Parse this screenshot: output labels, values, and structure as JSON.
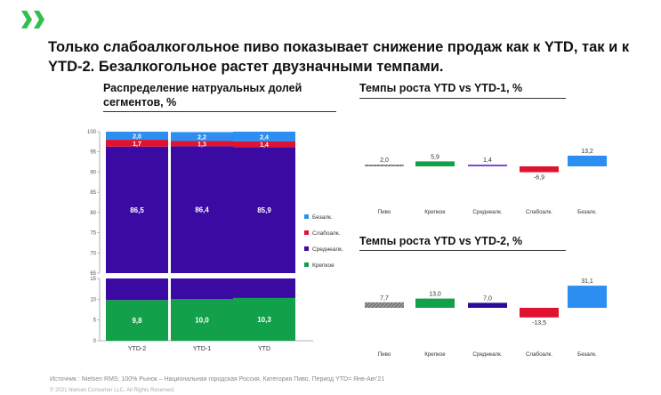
{
  "header": {
    "title": "Только слабоалкогольное пиво показывает снижение продаж как к YTD, так и к YTD-2. Безалкогольное растет двузначными темпами.",
    "logo_icon": "brand-logo-icon",
    "accent": "#2fbf4a"
  },
  "left_panel": {
    "subtitle": "Распределение натруальных долей сегментов, %"
  },
  "right_top": {
    "subtitle": "Темпы роста YTD vs YTD-1, %"
  },
  "right_bottom": {
    "subtitle": "Темпы роста YTD vs YTD-2, %"
  },
  "footer": {
    "source": "Источник : Nielsen RMS; 100% Рынок – Национальная городская Россия, Категория Пиво, Период YTD= Янв-Авг'21",
    "copyright": "© 2021 Nielsen Consumer LLC. All Rights Reserved."
  },
  "chart_data": [
    {
      "type": "bar",
      "stacked": true,
      "categories": [
        "YTD-2",
        "YTD-1",
        "YTD"
      ],
      "series": [
        {
          "name": "Крепкое",
          "values": [
            9.8,
            10.0,
            10.3
          ],
          "color": "#13a04a"
        },
        {
          "name": "Среднеалк.",
          "values": [
            86.5,
            86.4,
            85.9
          ],
          "color": "#3a0aa3"
        },
        {
          "name": "Слабоалк.",
          "values": [
            1.7,
            1.3,
            1.4
          ],
          "color": "#e0122f"
        },
        {
          "name": "Безалк.",
          "values": [
            2.0,
            2.2,
            2.4
          ],
          "color": "#2b8ef0"
        }
      ],
      "axis_break": [
        15,
        65
      ],
      "y_ticks": [
        0,
        5,
        10,
        15,
        65,
        70,
        75,
        80,
        85,
        90,
        95,
        100
      ],
      "ylim": [
        0,
        100
      ],
      "legend_order": [
        "Безалк.",
        "Слабоалк.",
        "Среднеалк.",
        "Крепкое"
      ],
      "legend_placement": "right"
    },
    {
      "type": "bar",
      "subtype": "growth",
      "categories": [
        "Пиво",
        "Крепкое",
        "Среднеалк.",
        "Слабоалк.",
        "Безалк."
      ],
      "values": [
        2.0,
        5.9,
        1.4,
        -6.9,
        13.2
      ],
      "labels": [
        "2,0",
        "5,9",
        "1,4",
        "-6,9",
        "13,2"
      ],
      "colors": [
        "#7a7a7a",
        "#13a04a",
        "#7c4ad8",
        "#e0122f",
        "#2b8ef0"
      ],
      "hatched": [
        true,
        false,
        false,
        false,
        false
      ]
    },
    {
      "type": "bar",
      "subtype": "growth",
      "categories": [
        "Пиво",
        "Крепкое",
        "Среднеалк.",
        "Слабоалк.",
        "Безалк."
      ],
      "values": [
        7.7,
        13.0,
        7.0,
        -13.5,
        31.1
      ],
      "labels": [
        "7,7",
        "13,0",
        "7,0",
        "-13,5",
        "31,1"
      ],
      "colors": [
        "#7a7a7a",
        "#13a04a",
        "#2a0a9a",
        "#e0122f",
        "#2b8ef0"
      ],
      "hatched": [
        true,
        false,
        false,
        false,
        false
      ]
    }
  ]
}
